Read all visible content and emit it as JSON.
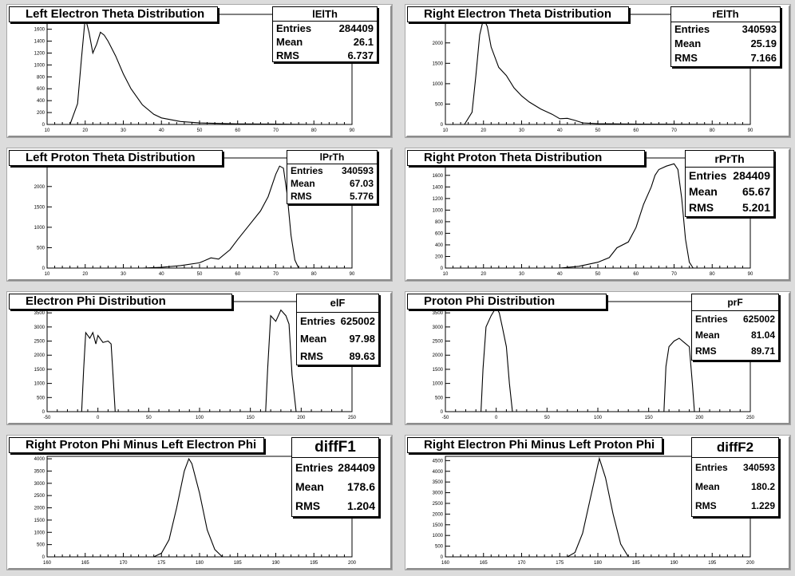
{
  "charts": [
    {
      "id": "lElTh",
      "title": "Left Electron Theta Distribution",
      "stats": {
        "name": "lElTh",
        "entries": "284409",
        "mean": "26.1",
        "rms": "6.737"
      },
      "xticks": [
        "10",
        "20",
        "30",
        "40",
        "50",
        "60",
        "70",
        "80",
        "90"
      ],
      "yticks": [
        "0",
        "200",
        "400",
        "600",
        "800",
        "1000",
        "1200",
        "1400",
        "1600",
        "1800"
      ]
    },
    {
      "id": "rElTh",
      "title": "Right Electron Theta Distribution",
      "stats": {
        "name": "rElTh",
        "entries": "340593",
        "mean": "25.19",
        "rms": "7.166"
      },
      "xticks": [
        "10",
        "20",
        "30",
        "40",
        "50",
        "60",
        "70",
        "80",
        "90"
      ],
      "yticks": [
        "0",
        "500",
        "1000",
        "1500",
        "2000",
        "2500"
      ]
    },
    {
      "id": "lPrTh",
      "title": "Left Proton Theta Distribution",
      "stats": {
        "name": "lPrTh",
        "entries": "340593",
        "mean": "67.03",
        "rms": "5.776"
      },
      "xticks": [
        "10",
        "20",
        "30",
        "40",
        "50",
        "60",
        "70",
        "80",
        "90"
      ],
      "yticks": [
        "0",
        "500",
        "1000",
        "1500",
        "2000",
        "2500"
      ]
    },
    {
      "id": "rPrTh",
      "title": "Right Proton Theta Distribution",
      "stats": {
        "name": "rPrTh",
        "entries": "284409",
        "mean": "65.67",
        "rms": "5.201"
      },
      "xticks": [
        "10",
        "20",
        "30",
        "40",
        "50",
        "60",
        "70",
        "80",
        "90"
      ],
      "yticks": [
        "0",
        "200",
        "400",
        "600",
        "800",
        "1000",
        "1200",
        "1400",
        "1600",
        "1800"
      ]
    },
    {
      "id": "elF",
      "title": "Electron Phi Distribution",
      "stats": {
        "name": "elF",
        "entries": "625002",
        "mean": "97.98",
        "rms": "89.63"
      },
      "xticks": [
        "-50",
        "0",
        "50",
        "100",
        "150",
        "200",
        "250"
      ],
      "yticks": [
        "0",
        "500",
        "1000",
        "1500",
        "2000",
        "2500",
        "3000",
        "3500"
      ]
    },
    {
      "id": "prF",
      "title": "Proton Phi Distribution",
      "stats": {
        "name": "prF",
        "entries": "625002",
        "mean": "81.04",
        "rms": "89.71"
      },
      "xticks": [
        "-50",
        "0",
        "50",
        "100",
        "150",
        "200",
        "250"
      ],
      "yticks": [
        "0",
        "500",
        "1000",
        "1500",
        "2000",
        "2500",
        "3000",
        "3500"
      ]
    },
    {
      "id": "diffF1",
      "title": "Right Proton Phi Minus Left Electron Phi",
      "stats": {
        "name": "diffF1",
        "entries": "284409",
        "mean": "178.6",
        "rms": "1.204"
      },
      "xticks": [
        "160",
        "165",
        "170",
        "175",
        "180",
        "185",
        "190",
        "195",
        "200"
      ],
      "yticks": [
        "0",
        "500",
        "1000",
        "1500",
        "2000",
        "2500",
        "3000",
        "3500",
        "4000"
      ]
    },
    {
      "id": "diffF2",
      "title": "Right Electron Phi Minus Left Proton Phi",
      "stats": {
        "name": "diffF2",
        "entries": "340593",
        "mean": "180.2",
        "rms": "1.229"
      },
      "xticks": [
        "160",
        "165",
        "170",
        "175",
        "180",
        "185",
        "190",
        "195",
        "200"
      ],
      "yticks": [
        "0",
        "500",
        "1000",
        "1500",
        "2000",
        "2500",
        "3000",
        "3500",
        "4000",
        "4500"
      ]
    }
  ],
  "labels": {
    "entries": "Entries",
    "mean": "Mean",
    "rms": "RMS"
  },
  "chart_data": [
    {
      "type": "line",
      "title": "Left Electron Theta Distribution",
      "xlim": [
        10,
        90
      ],
      "ylim": [
        0,
        1850
      ],
      "x": [
        10,
        16,
        18,
        19,
        20,
        21,
        22,
        23,
        24,
        25,
        26,
        28,
        30,
        32,
        35,
        38,
        40,
        45,
        50,
        60,
        70,
        80,
        90
      ],
      "y": [
        0,
        0,
        350,
        1100,
        1800,
        1550,
        1200,
        1350,
        1550,
        1500,
        1400,
        1150,
        850,
        600,
        330,
        170,
        110,
        50,
        25,
        10,
        5,
        0,
        0
      ]
    },
    {
      "type": "line",
      "title": "Right Electron Theta Distribution",
      "xlim": [
        10,
        90
      ],
      "ylim": [
        0,
        2700
      ],
      "x": [
        10,
        15,
        17,
        18,
        19,
        20,
        21,
        22,
        24,
        26,
        28,
        30,
        32,
        35,
        38,
        40,
        42,
        44,
        46,
        50,
        60,
        70,
        80,
        90
      ],
      "y": [
        0,
        0,
        300,
        1200,
        2200,
        2600,
        2400,
        1900,
        1400,
        1200,
        900,
        700,
        550,
        380,
        250,
        140,
        150,
        100,
        40,
        20,
        10,
        5,
        0,
        0
      ]
    },
    {
      "type": "line",
      "title": "Left Proton Theta Distribution",
      "xlim": [
        10,
        90
      ],
      "ylim": [
        0,
        2700
      ],
      "x": [
        10,
        35,
        40,
        45,
        50,
        53,
        55,
        58,
        60,
        63,
        66,
        68,
        70,
        71,
        72,
        73,
        74,
        75,
        76,
        80,
        90
      ],
      "y": [
        0,
        0,
        20,
        60,
        130,
        250,
        220,
        450,
        700,
        1050,
        1400,
        1750,
        2300,
        2500,
        2450,
        1800,
        800,
        200,
        0,
        0,
        0
      ]
    },
    {
      "type": "line",
      "title": "Right Proton Theta Distribution",
      "xlim": [
        10,
        90
      ],
      "ylim": [
        0,
        1900
      ],
      "x": [
        10,
        40,
        45,
        50,
        53,
        55,
        58,
        60,
        62,
        64,
        65,
        66,
        68,
        70,
        71,
        72,
        73,
        74,
        75,
        80,
        90
      ],
      "y": [
        0,
        0,
        30,
        100,
        180,
        350,
        450,
        700,
        1100,
        1400,
        1600,
        1700,
        1760,
        1800,
        1700,
        1200,
        500,
        100,
        0,
        0,
        0
      ]
    },
    {
      "type": "line",
      "title": "Electron Phi Distribution",
      "xlim": [
        -50,
        250
      ],
      "ylim": [
        0,
        3900
      ],
      "x": [
        -50,
        -16,
        -14,
        -12,
        -8,
        -5,
        -2,
        0,
        5,
        10,
        13,
        15,
        17,
        165,
        167,
        170,
        175,
        180,
        185,
        188,
        191,
        195,
        250
      ],
      "y": [
        0,
        0,
        1500,
        2800,
        2600,
        2800,
        2400,
        2700,
        2450,
        2500,
        2400,
        1200,
        0,
        0,
        1500,
        3400,
        3200,
        3600,
        3400,
        3100,
        1300,
        0,
        0
      ]
    },
    {
      "type": "line",
      "title": "Proton Phi Distribution",
      "xlim": [
        -50,
        250
      ],
      "ylim": [
        0,
        3900
      ],
      "x": [
        -50,
        -15,
        -13,
        -10,
        -5,
        0,
        3,
        6,
        10,
        13,
        16,
        165,
        167,
        170,
        175,
        180,
        185,
        190,
        193,
        195,
        250
      ],
      "y": [
        0,
        0,
        1500,
        3000,
        3400,
        3700,
        3500,
        3000,
        2300,
        1000,
        0,
        0,
        1600,
        2300,
        2500,
        2600,
        2450,
        2300,
        1000,
        0,
        0
      ]
    },
    {
      "type": "line",
      "title": "Right Proton Phi Minus Left Electron Phi",
      "xlim": [
        160,
        200
      ],
      "ylim": [
        0,
        4100
      ],
      "x": [
        160,
        174,
        175,
        176,
        177,
        178,
        178.6,
        179,
        180,
        181,
        182,
        183,
        200
      ],
      "y": [
        0,
        0,
        150,
        700,
        2000,
        3500,
        4000,
        3800,
        2600,
        1100,
        300,
        0,
        0
      ]
    },
    {
      "type": "line",
      "title": "Right Electron Phi Minus Left Proton Phi",
      "xlim": [
        160,
        200
      ],
      "ylim": [
        0,
        4700
      ],
      "x": [
        160,
        176,
        177,
        178,
        179,
        180,
        180.2,
        181,
        182,
        183,
        184,
        200
      ],
      "y": [
        0,
        0,
        200,
        1100,
        2700,
        4300,
        4600,
        3700,
        2000,
        600,
        0,
        0
      ]
    }
  ]
}
